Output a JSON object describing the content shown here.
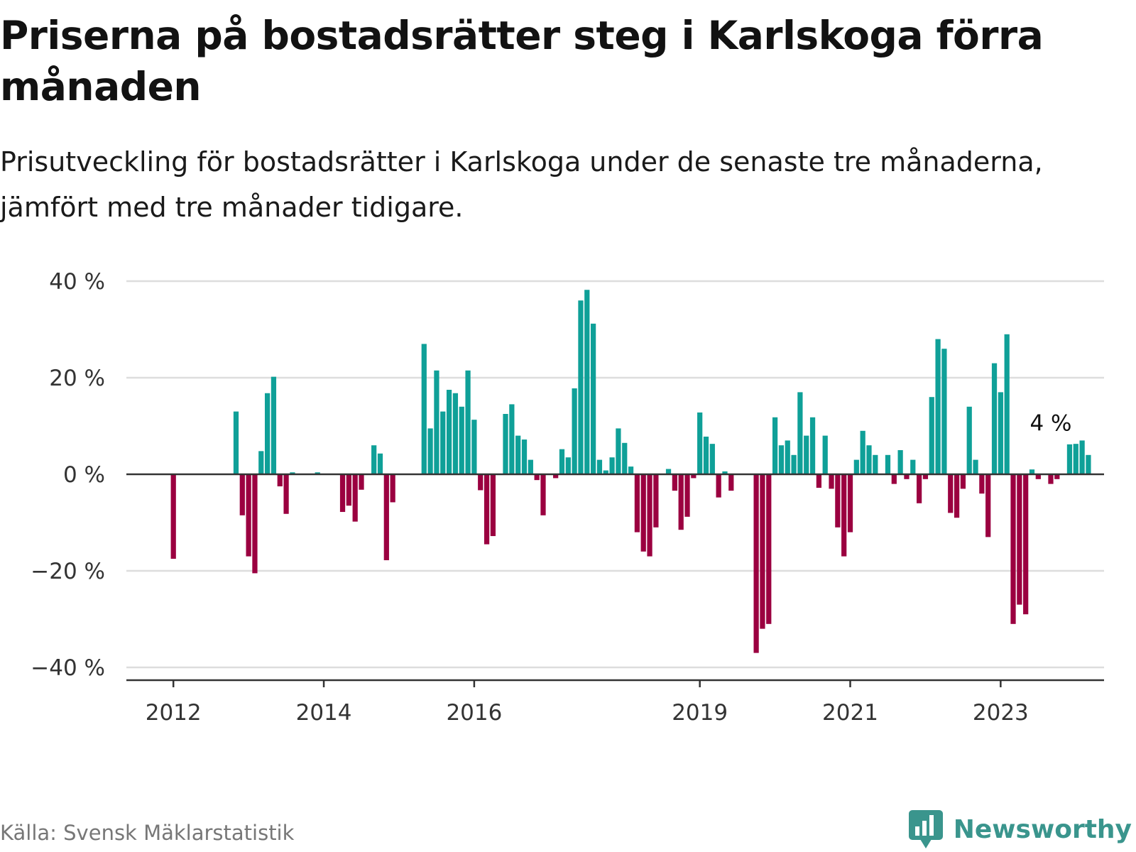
{
  "title": "Priserna på bostadsrätter steg i Karlskoga förra månaden",
  "subtitle": "Prisutveckling för bostadsrätter i Karlskoga under de senaste tre månaderna, jämfört med tre månader tidigare.",
  "source": "Källa: Svensk Mäklarstatistik",
  "brand": {
    "name": "Newsworthy",
    "icon": "bar-chart-speech-bubble-icon"
  },
  "colors": {
    "positive": "#0fa098",
    "negative": "#9b0040",
    "grid": "#dddddd",
    "axis": "#333333",
    "brand": "#3a958d"
  },
  "chart_data": {
    "type": "bar",
    "unit": "%",
    "ylim": [
      -42,
      42
    ],
    "y_ticks": [
      40,
      20,
      0,
      -20,
      -40
    ],
    "y_tick_labels": [
      "40 %",
      "20 %",
      "0 %",
      "−20 %",
      "−40 %"
    ],
    "x_tick_labels": [
      {
        "label": "2012",
        "date": "2012-01"
      },
      {
        "label": "2014",
        "date": "2014-01"
      },
      {
        "label": "2016",
        "date": "2016-01"
      },
      {
        "label": "2019",
        "date": "2019-01"
      },
      {
        "label": "2021",
        "date": "2021-01"
      },
      {
        "label": "2023",
        "date": "2023-01"
      }
    ],
    "x_range": [
      "2011-06",
      "2024-06"
    ],
    "grid": true,
    "annotation": {
      "text": "4 %",
      "date": "2023-09"
    },
    "series": [
      {
        "values": [
          [
            "2012-01",
            -17.5
          ],
          [
            "2012-02",
            0
          ],
          [
            "2012-03",
            0
          ],
          [
            "2012-04",
            0
          ],
          [
            "2012-05",
            0
          ],
          [
            "2012-06",
            0
          ],
          [
            "2012-07",
            0
          ],
          [
            "2012-08",
            0
          ],
          [
            "2012-09",
            0
          ],
          [
            "2012-10",
            0
          ],
          [
            "2012-11",
            13
          ],
          [
            "2012-12",
            -8.5
          ],
          [
            "2013-01",
            -17
          ],
          [
            "2013-02",
            -20.5
          ],
          [
            "2013-03",
            4.8
          ],
          [
            "2013-04",
            16.8
          ],
          [
            "2013-05",
            20.2
          ],
          [
            "2013-06",
            -2.5
          ],
          [
            "2013-07",
            -8.2
          ],
          [
            "2013-08",
            0.4
          ],
          [
            "2013-09",
            0
          ],
          [
            "2013-10",
            0
          ],
          [
            "2013-11",
            0
          ],
          [
            "2013-12",
            0.4
          ],
          [
            "2014-01",
            0
          ],
          [
            "2014-02",
            0
          ],
          [
            "2014-03",
            0
          ],
          [
            "2014-04",
            -7.8
          ],
          [
            "2014-05",
            -6.5
          ],
          [
            "2014-06",
            -9.8
          ],
          [
            "2014-07",
            -3.2
          ],
          [
            "2014-08",
            0
          ],
          [
            "2014-09",
            6
          ],
          [
            "2014-10",
            4.3
          ],
          [
            "2014-11",
            -17.8
          ],
          [
            "2014-12",
            -5.8
          ],
          [
            "2015-01",
            0
          ],
          [
            "2015-02",
            0
          ],
          [
            "2015-03",
            0
          ],
          [
            "2015-04",
            0
          ],
          [
            "2015-05",
            27
          ],
          [
            "2015-06",
            9.5
          ],
          [
            "2015-07",
            21.5
          ],
          [
            "2015-08",
            13
          ],
          [
            "2015-09",
            17.5
          ],
          [
            "2015-10",
            16.8
          ],
          [
            "2015-11",
            14
          ],
          [
            "2015-12",
            21.5
          ],
          [
            "2016-01",
            11.3
          ],
          [
            "2016-02",
            -3.3
          ],
          [
            "2016-03",
            -14.5
          ],
          [
            "2016-04",
            -12.8
          ],
          [
            "2016-05",
            0
          ],
          [
            "2016-06",
            12.5
          ],
          [
            "2016-07",
            14.5
          ],
          [
            "2016-08",
            8
          ],
          [
            "2016-09",
            7.2
          ],
          [
            "2016-10",
            3
          ],
          [
            "2016-11",
            -1.2
          ],
          [
            "2016-12",
            -8.5
          ],
          [
            "2017-01",
            0
          ],
          [
            "2017-02",
            -0.8
          ],
          [
            "2017-03",
            5.2
          ],
          [
            "2017-04",
            3.5
          ],
          [
            "2017-05",
            17.8
          ],
          [
            "2017-06",
            36
          ],
          [
            "2017-07",
            38.2
          ],
          [
            "2017-08",
            31.2
          ],
          [
            "2017-09",
            3
          ],
          [
            "2017-10",
            0.8
          ],
          [
            "2017-11",
            3.5
          ],
          [
            "2017-12",
            9.5
          ],
          [
            "2018-01",
            6.5
          ],
          [
            "2018-02",
            1.6
          ],
          [
            "2018-03",
            -12
          ],
          [
            "2018-04",
            -16
          ],
          [
            "2018-05",
            -17
          ],
          [
            "2018-06",
            -11
          ],
          [
            "2018-07",
            0
          ],
          [
            "2018-08",
            1.1
          ],
          [
            "2018-09",
            -3.4
          ],
          [
            "2018-10",
            -11.5
          ],
          [
            "2018-11",
            -8.8
          ],
          [
            "2018-12",
            -0.8
          ],
          [
            "2019-01",
            12.8
          ],
          [
            "2019-02",
            7.8
          ],
          [
            "2019-03",
            6.3
          ],
          [
            "2019-04",
            -4.8
          ],
          [
            "2019-05",
            0.6
          ],
          [
            "2019-06",
            -3.4
          ],
          [
            "2019-07",
            0
          ],
          [
            "2019-08",
            0
          ],
          [
            "2019-09",
            0
          ],
          [
            "2019-10",
            -37
          ],
          [
            "2019-11",
            -32
          ],
          [
            "2019-12",
            -31
          ],
          [
            "2020-01",
            11.8
          ],
          [
            "2020-02",
            6
          ],
          [
            "2020-03",
            7
          ],
          [
            "2020-04",
            4
          ],
          [
            "2020-05",
            17
          ],
          [
            "2020-06",
            8
          ],
          [
            "2020-07",
            11.8
          ],
          [
            "2020-08",
            -2.8
          ],
          [
            "2020-09",
            8
          ],
          [
            "2020-10",
            -3
          ],
          [
            "2020-11",
            -11
          ],
          [
            "2020-12",
            -17
          ],
          [
            "2021-01",
            -12
          ],
          [
            "2021-02",
            3
          ],
          [
            "2021-03",
            9
          ],
          [
            "2021-04",
            6
          ],
          [
            "2021-05",
            4
          ],
          [
            "2021-06",
            0
          ],
          [
            "2021-07",
            4
          ],
          [
            "2021-08",
            -2
          ],
          [
            "2021-09",
            5
          ],
          [
            "2021-10",
            -1
          ],
          [
            "2021-11",
            3
          ],
          [
            "2021-12",
            -6
          ],
          [
            "2022-01",
            -1
          ],
          [
            "2022-02",
            16
          ],
          [
            "2022-03",
            28
          ],
          [
            "2022-04",
            26
          ],
          [
            "2022-05",
            -8
          ],
          [
            "2022-06",
            -9
          ],
          [
            "2022-07",
            -3
          ],
          [
            "2022-08",
            14
          ],
          [
            "2022-09",
            3
          ],
          [
            "2022-10",
            -4
          ],
          [
            "2022-11",
            -13
          ],
          [
            "2022-12",
            23
          ],
          [
            "2023-01",
            17
          ],
          [
            "2023-02",
            29
          ],
          [
            "2023-03",
            -31
          ],
          [
            "2023-04",
            -27
          ],
          [
            "2023-05",
            -29
          ],
          [
            "2023-06",
            1
          ],
          [
            "2023-07",
            -1
          ],
          [
            "2023-08",
            0
          ],
          [
            "2023-09",
            -2
          ],
          [
            "2023-10",
            -1
          ],
          [
            "2023-11",
            0
          ],
          [
            "2023-12",
            6.2
          ],
          [
            "2024-01",
            6.3
          ],
          [
            "2024-02",
            7
          ],
          [
            "2024-03",
            4
          ]
        ]
      }
    ]
  }
}
